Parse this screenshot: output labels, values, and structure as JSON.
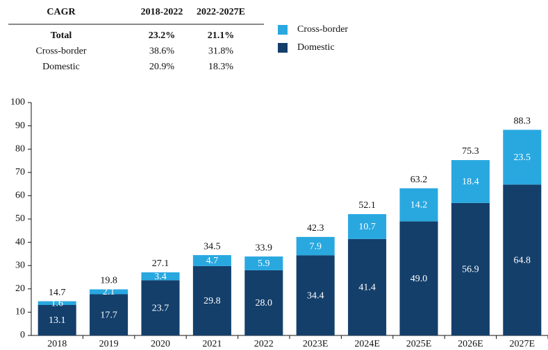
{
  "chart_data": {
    "type": "stacked_bar",
    "categories": [
      "2018",
      "2019",
      "2020",
      "2021",
      "2022",
      "2023E",
      "2024E",
      "2025E",
      "2026E",
      "2027E"
    ],
    "series": [
      {
        "name": "Domestic",
        "color": "#143f6b",
        "values": [
          13.1,
          17.7,
          23.7,
          29.8,
          28.0,
          34.4,
          41.4,
          49.0,
          56.9,
          64.8
        ],
        "value_labels": [
          "13.1",
          "17.7",
          "23.7",
          "29.8",
          "28.0",
          "34.4",
          "41.4",
          "49.0",
          "56.9",
          "64.8"
        ]
      },
      {
        "name": "Cross-border",
        "color": "#29a8e0",
        "values": [
          1.6,
          2.1,
          3.4,
          4.7,
          5.9,
          7.9,
          10.7,
          14.2,
          18.4,
          23.5
        ]
      }
    ],
    "totals": [
      14.7,
      19.8,
      27.1,
      34.5,
      33.9,
      42.3,
      52.1,
      63.2,
      75.3,
      88.3
    ],
    "ylim": [
      0,
      100
    ],
    "yticks": [
      0,
      10,
      20,
      30,
      40,
      50,
      60,
      70,
      80,
      90,
      100
    ]
  },
  "table": {
    "header": [
      "CAGR",
      "2018-2022",
      "2022-2027E"
    ],
    "rows": [
      [
        "Total",
        "23.2%",
        "21.1%"
      ],
      [
        "Cross-border",
        "38.6%",
        "31.8%"
      ],
      [
        "Domestic",
        "20.9%",
        "18.3%"
      ]
    ]
  }
}
